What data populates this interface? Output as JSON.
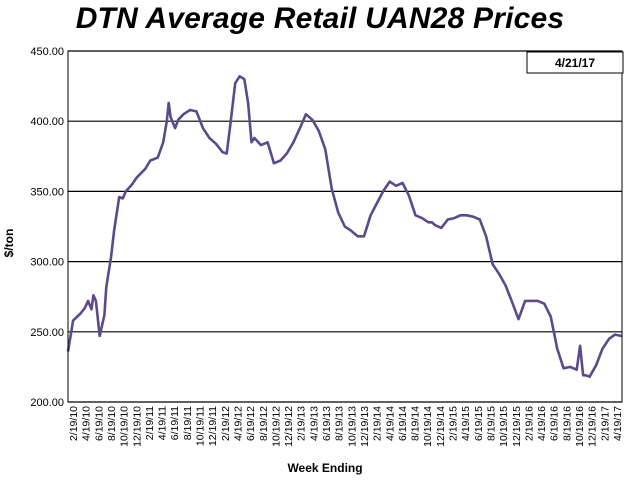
{
  "colors": {
    "line": "#5b4a8c",
    "grid": "#000000",
    "background": "#ffffff"
  },
  "chart_data": {
    "type": "line",
    "title": "DTN Average Retail UAN28 Prices",
    "xlabel": "Week Ending",
    "ylabel": "$/ton",
    "date_label": "4/21/17",
    "ylim": [
      200,
      450
    ],
    "y_ticks": [
      "200.00",
      "250.00",
      "300.00",
      "350.00",
      "400.00",
      "450.00"
    ],
    "grid": "horizontal",
    "x_tick_labels": [
      "2/19/10",
      "4/19/10",
      "6/19/10",
      "8/19/10",
      "10/19/10",
      "12/19/10",
      "2/19/11",
      "4/19/11",
      "6/19/11",
      "8/19/11",
      "10/19/11",
      "12/19/11",
      "2/19/12",
      "4/19/12",
      "6/19/12",
      "8/19/12",
      "10/19/12",
      "12/19/12",
      "2/19/13",
      "4/19/13",
      "6/19/13",
      "8/19/13",
      "10/19/13",
      "12/19/13",
      "2/19/14",
      "4/19/14",
      "6/19/14",
      "8/19/14",
      "10/19/14",
      "12/19/14",
      "2/19/15",
      "4/19/15",
      "6/19/15",
      "8/19/15",
      "10/19/15",
      "12/19/15",
      "2/19/16",
      "4/19/16",
      "6/19/16",
      "8/19/16",
      "10/19/16",
      "12/19/16",
      "2/19/17",
      "4/19/17"
    ],
    "series": [
      {
        "x": [
          "2010-02-19",
          "2010-03-15",
          "2010-04-19",
          "2010-05-10",
          "2010-05-25",
          "2010-06-10",
          "2010-06-19",
          "2010-07-01",
          "2010-07-19",
          "2010-08-10",
          "2010-08-19",
          "2010-09-10",
          "2010-09-25",
          "2010-10-19",
          "2010-11-05",
          "2010-11-19",
          "2010-12-19",
          "2011-01-10",
          "2011-02-19",
          "2011-03-15",
          "2011-04-19",
          "2011-05-15",
          "2011-06-01",
          "2011-06-10",
          "2011-06-19",
          "2011-07-10",
          "2011-07-25",
          "2011-08-19",
          "2011-09-19",
          "2011-10-19",
          "2011-11-19",
          "2011-12-19",
          "2012-01-19",
          "2012-02-19",
          "2012-03-10",
          "2012-03-25",
          "2012-04-19",
          "2012-05-10",
          "2012-06-01",
          "2012-06-19",
          "2012-07-05",
          "2012-07-19",
          "2012-08-19",
          "2012-09-19",
          "2012-10-19",
          "2012-11-19",
          "2012-12-19",
          "2013-01-19",
          "2013-02-19",
          "2013-03-19",
          "2013-04-19",
          "2013-05-19",
          "2013-06-19",
          "2013-07-19",
          "2013-08-19",
          "2013-09-19",
          "2013-10-19",
          "2013-11-19",
          "2013-12-19",
          "2014-01-19",
          "2014-02-19",
          "2014-03-19",
          "2014-04-19",
          "2014-05-19",
          "2014-06-19",
          "2014-07-19",
          "2014-08-19",
          "2014-09-19",
          "2014-10-19",
          "2014-11-05",
          "2014-11-19",
          "2014-12-19",
          "2015-01-19",
          "2015-02-19",
          "2015-03-19",
          "2015-04-19",
          "2015-05-19",
          "2015-06-19",
          "2015-07-19",
          "2015-08-19",
          "2015-09-19",
          "2015-10-19",
          "2015-11-19",
          "2015-12-19",
          "2016-01-19",
          "2016-02-19",
          "2016-03-19",
          "2016-04-19",
          "2016-05-19",
          "2016-06-19",
          "2016-07-19",
          "2016-08-19",
          "2016-09-19",
          "2016-10-05",
          "2016-10-19",
          "2016-11-01",
          "2016-11-19",
          "2016-12-19",
          "2017-01-19",
          "2017-02-19",
          "2017-03-19",
          "2017-04-19",
          "2017-04-21"
        ],
        "y": [
          236,
          258,
          263,
          267,
          272,
          266,
          276,
          272,
          247,
          262,
          282,
          303,
          322,
          346,
          345,
          350,
          355,
          360,
          366,
          372,
          374,
          385,
          400,
          413,
          403,
          395,
          401,
          405,
          408,
          407,
          395,
          388,
          384,
          378,
          377,
          395,
          427,
          432,
          430,
          413,
          385,
          388,
          383,
          385,
          370,
          372,
          377,
          385,
          395,
          405,
          401,
          393,
          380,
          352,
          335,
          325,
          322,
          318,
          318,
          333,
          342,
          350,
          357,
          354,
          356,
          347,
          333,
          331,
          328,
          328,
          326,
          324,
          330,
          331,
          333,
          333,
          332,
          330,
          318,
          298,
          291,
          283,
          271,
          259,
          272,
          272,
          272,
          270,
          261,
          238,
          224,
          225,
          223,
          240,
          219,
          219,
          218,
          226,
          238,
          245,
          248,
          247,
          247
        ]
      }
    ]
  }
}
